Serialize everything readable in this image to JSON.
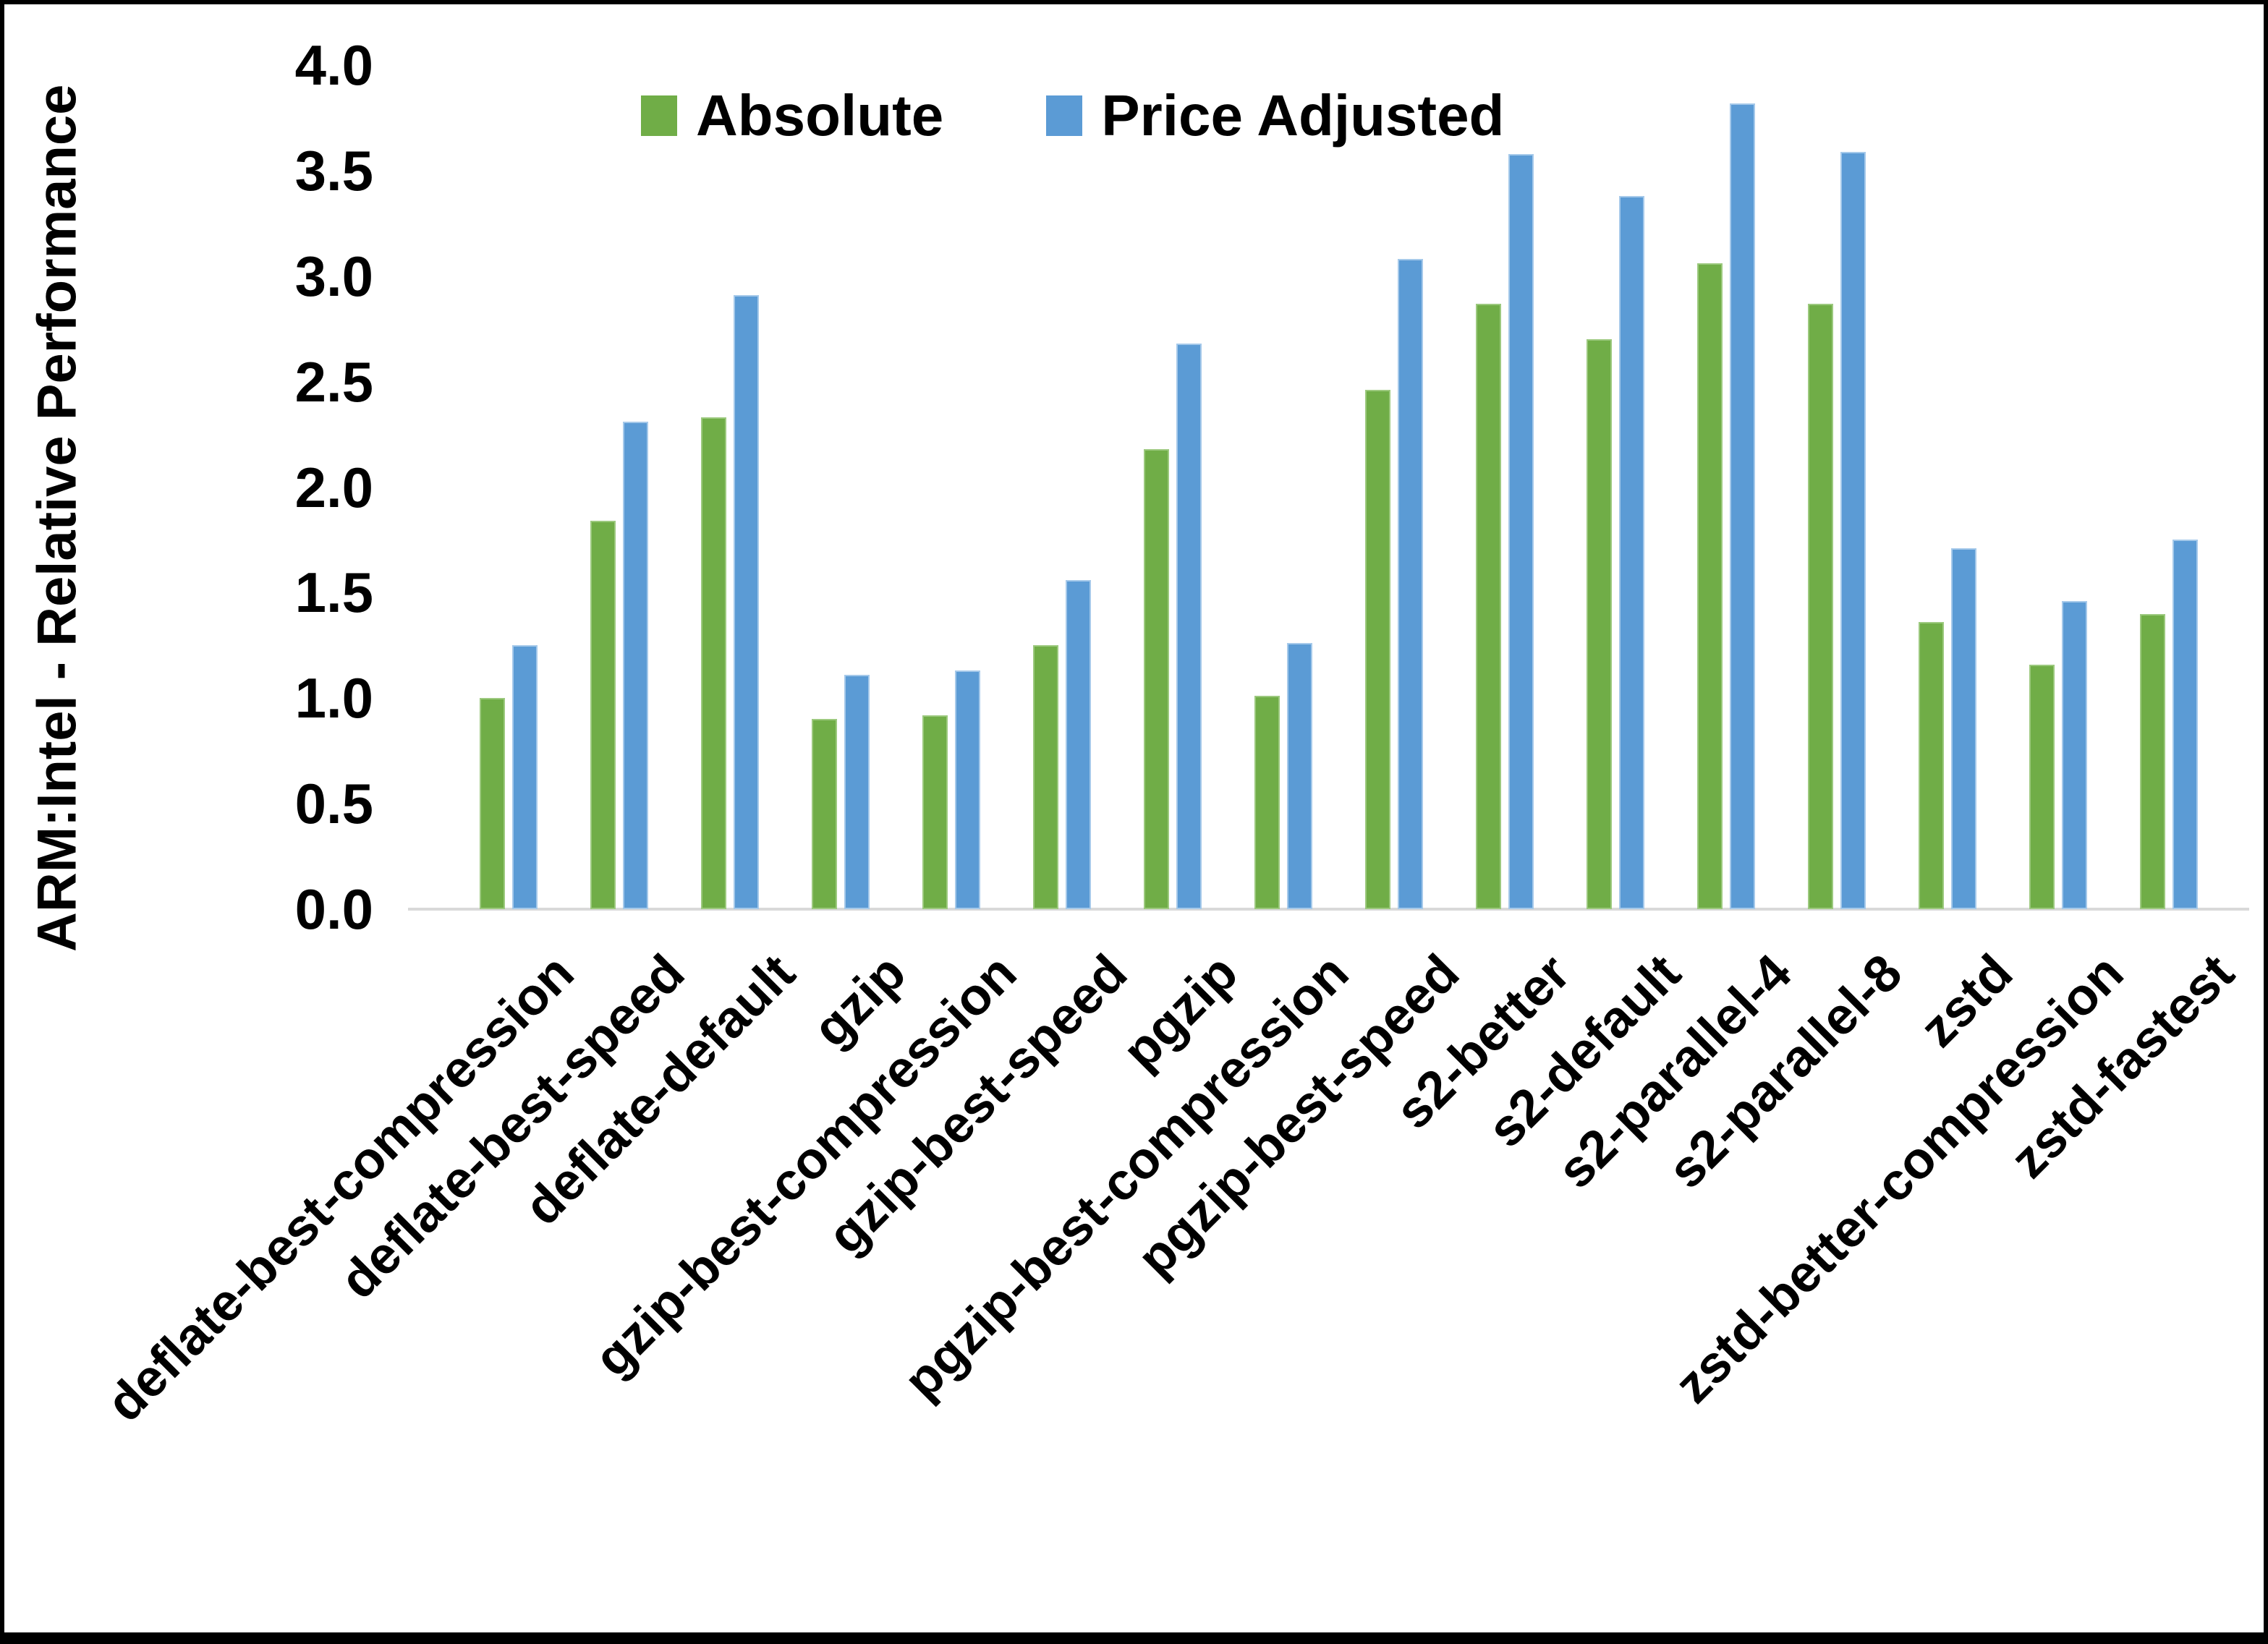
{
  "chart_data": {
    "type": "bar",
    "title": "",
    "ylabel": "ARM:Intel - Relative Performance",
    "xlabel": "",
    "ylim": [
      0.0,
      4.0
    ],
    "ytick_step": 0.5,
    "yticks": [
      "4.0",
      "3.5",
      "3.0",
      "2.5",
      "2.0",
      "1.5",
      "1.0",
      "0.5",
      "0.0"
    ],
    "grid": false,
    "legend_position": "top-center",
    "categories": [
      "deflate-best-compression",
      "deflate-best-speed",
      "deflate-default",
      "gzip",
      "gzip-best-compression",
      "gzip-best-speed",
      "pgzip",
      "pgzip-best-compression",
      "pgzip-best-speed",
      "s2-better",
      "s2-default",
      "s2-parallel-4",
      "s2-parallel-8",
      "zstd",
      "zstd-better-compression",
      "zstd-fastest"
    ],
    "series": [
      {
        "name": "Absolute",
        "color": "#70AD47",
        "values": [
          1.0,
          1.84,
          2.33,
          0.9,
          0.92,
          1.25,
          2.18,
          1.01,
          2.46,
          2.87,
          2.7,
          3.06,
          2.87,
          1.36,
          1.16,
          1.4
        ]
      },
      {
        "name": "Price Adjusted",
        "color": "#5B9BD5",
        "values": [
          1.25,
          2.31,
          2.91,
          1.11,
          1.13,
          1.56,
          2.68,
          1.26,
          3.08,
          3.58,
          3.38,
          3.82,
          3.59,
          1.71,
          1.46,
          1.75
        ]
      }
    ]
  },
  "colors": {
    "axis_line": "#d9d9d9",
    "text": "#000000",
    "background": "#ffffff",
    "frame_border": "#000000"
  }
}
